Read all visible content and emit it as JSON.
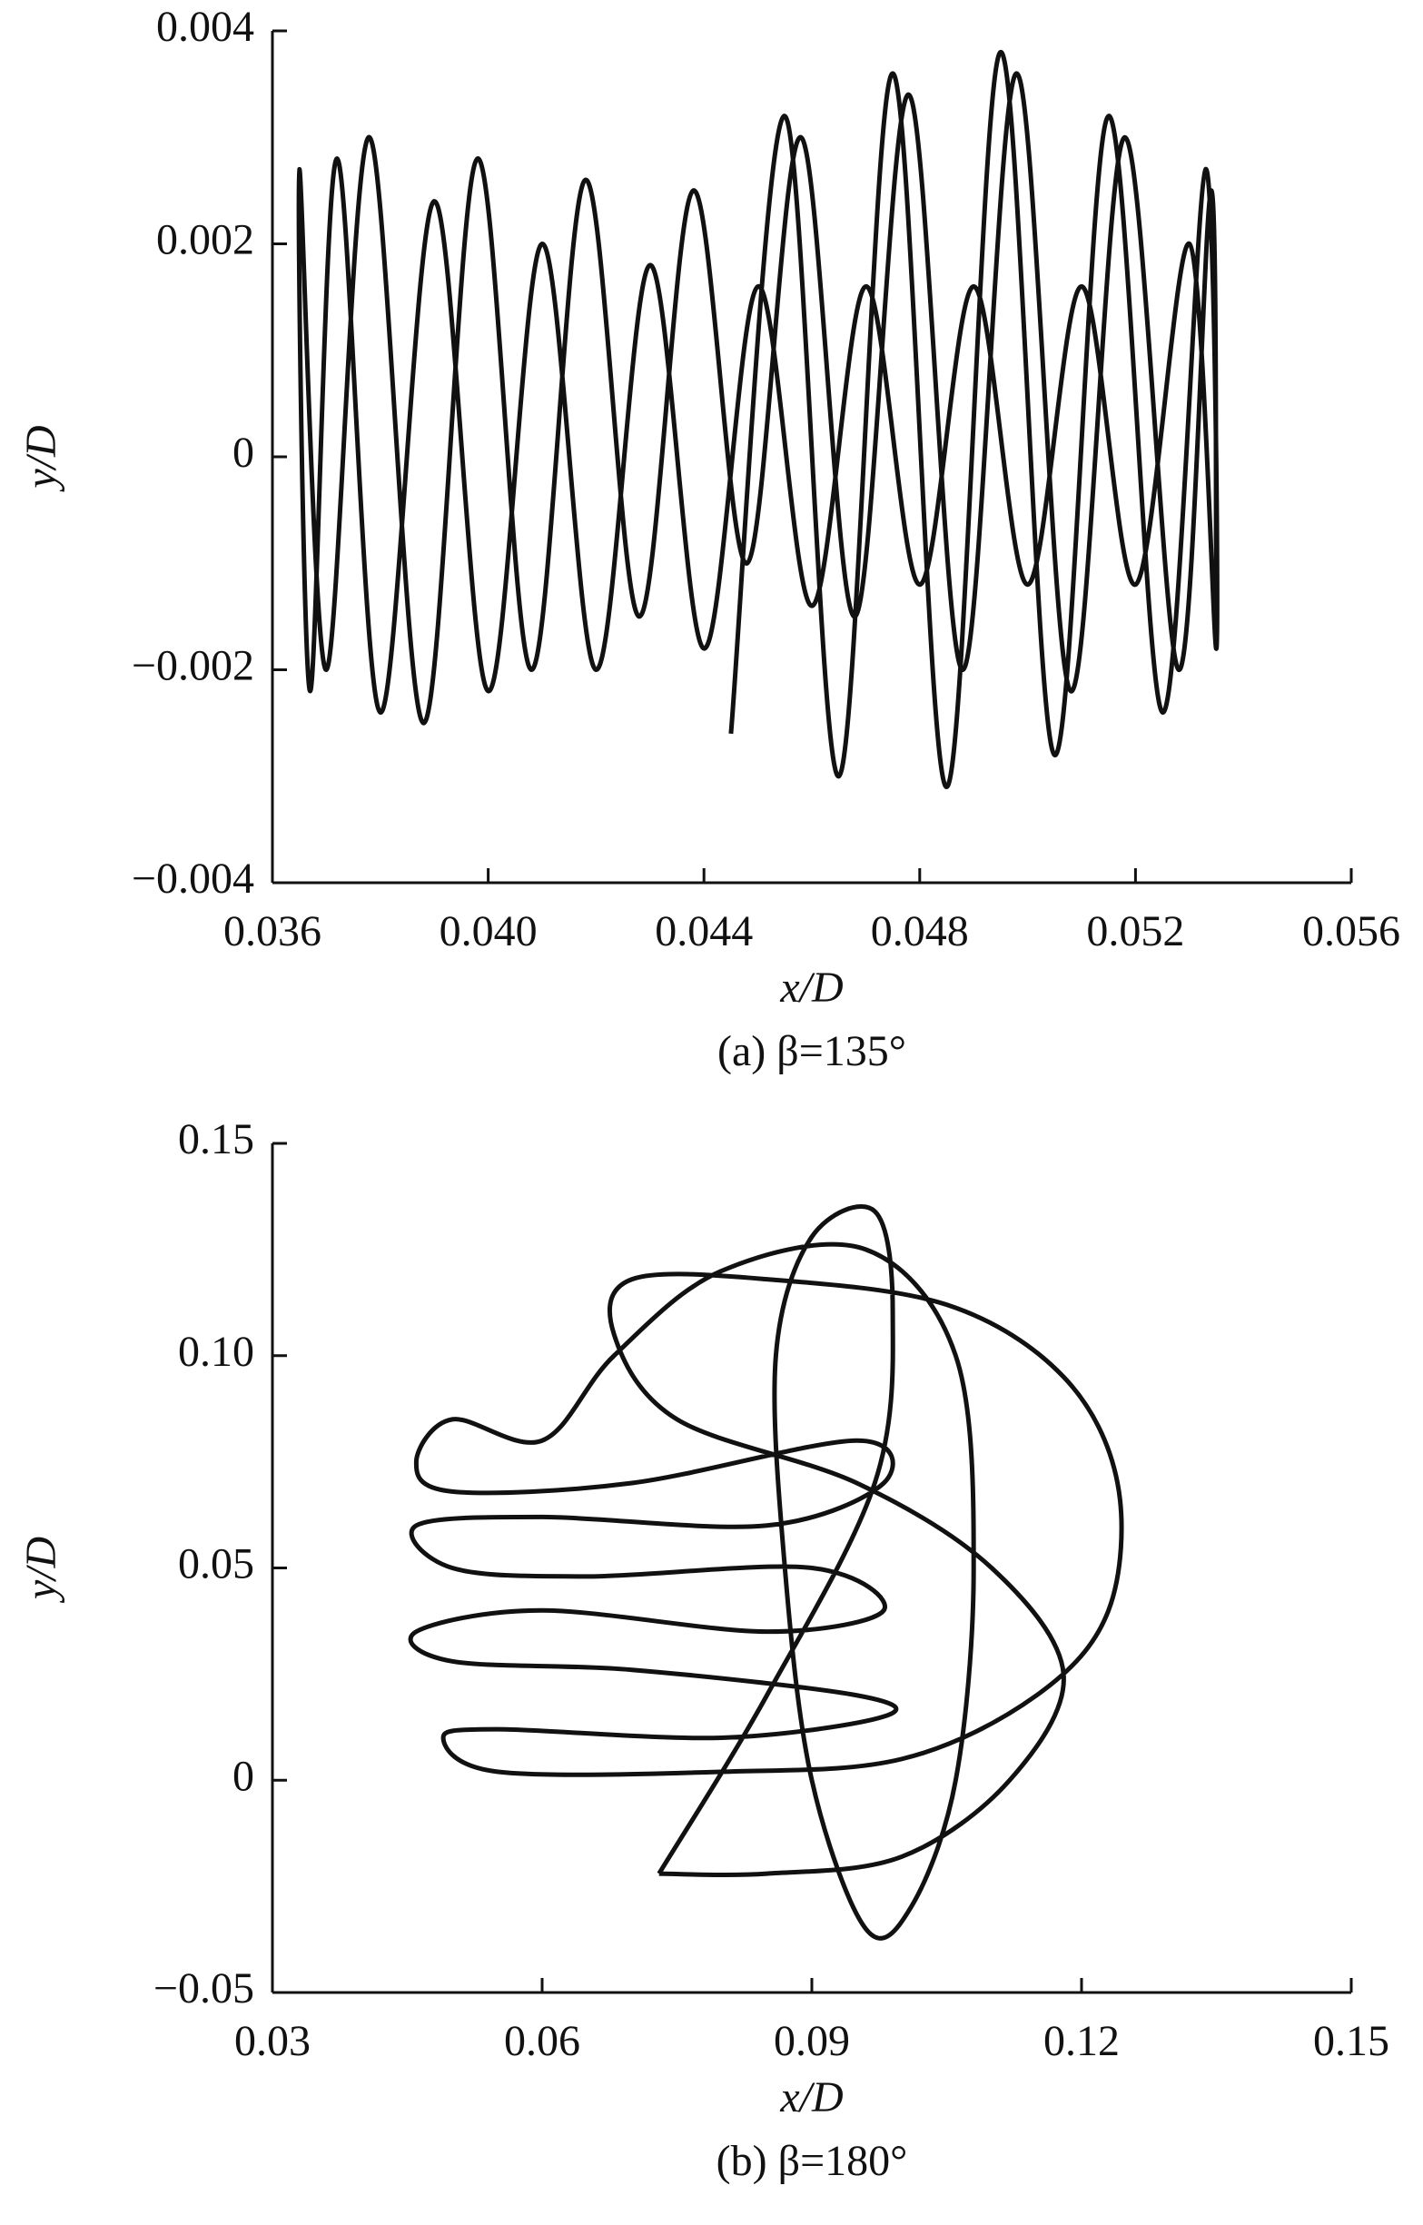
{
  "chart_data": [
    {
      "type": "line",
      "caption": "(a)  β=135°",
      "xlabel": "x/D",
      "ylabel": "y/D",
      "xlim": [
        0.036,
        0.056
      ],
      "ylim": [
        -0.004,
        0.004
      ],
      "xticks": [
        0.036,
        {
          "value": 0.04,
          "label": "0.040"
        },
        0.044,
        0.048,
        0.052,
        0.056
      ],
      "yticks": [
        {
          "value": -0.004,
          "label": "−0.004"
        },
        {
          "value": -0.002,
          "label": "−0.002"
        },
        0,
        0.002,
        0.004
      ],
      "series": [
        {
          "color": "#111111",
          "x": [
            0.0445,
            0.0455,
            0.0465,
            0.0475,
            0.0485,
            0.0495,
            0.0505,
            0.0515,
            0.0525,
            0.0533,
            0.0535,
            0.053,
            0.052,
            0.051,
            0.05,
            0.049,
            0.048,
            0.047,
            0.046,
            0.045,
            0.044,
            0.043,
            0.042,
            0.041,
            0.04,
            0.039,
            0.038,
            0.0372,
            0.0367,
            0.0365,
            0.037,
            0.0378,
            0.0388,
            0.0398,
            0.0408,
            0.0418,
            0.0428,
            0.0438,
            0.0448,
            0.0458,
            0.0468,
            0.0478,
            0.0488,
            0.0498,
            0.0508,
            0.0518,
            0.0528,
            0.0534,
            0.0535
          ],
          "values": [
            -0.0026,
            0.0032,
            -0.003,
            0.0036,
            -0.0031,
            0.0038,
            -0.0028,
            0.0032,
            -0.0024,
            0.0027,
            -0.0018,
            0.002,
            -0.0012,
            0.0016,
            -0.0012,
            0.0016,
            -0.0012,
            0.0016,
            -0.0014,
            0.0016,
            -0.0018,
            0.0018,
            -0.002,
            0.002,
            -0.0022,
            0.0024,
            -0.0024,
            0.0028,
            -0.0022,
            0.0027,
            -0.002,
            0.003,
            -0.0025,
            0.0028,
            -0.002,
            0.0026,
            -0.0015,
            0.0025,
            -0.001,
            0.003,
            -0.0015,
            0.0034,
            -0.002,
            0.0036,
            -0.0022,
            0.003,
            -0.002,
            0.0025,
            -0.0015
          ]
        }
      ]
    },
    {
      "type": "line",
      "caption": "(b)  β=180°",
      "xlabel": "x/D",
      "ylabel": "y/D",
      "xlim": [
        0.03,
        0.15
      ],
      "ylim": [
        -0.05,
        0.15
      ],
      "xticks": [
        0.03,
        0.06,
        0.09,
        0.12,
        0.15
      ],
      "yticks": [
        {
          "value": -0.05,
          "label": "−0.05"
        },
        0,
        0.05,
        {
          "value": 0.1,
          "label": "0.10"
        },
        0.15
      ],
      "series": [
        {
          "color": "#111111",
          "x": [
            0.073,
            0.085,
            0.097,
            0.099,
            0.097,
            0.09,
            0.086,
            0.087,
            0.09,
            0.096,
            0.101,
            0.106,
            0.108,
            0.106,
            0.096,
            0.08,
            0.068,
            0.06,
            0.05,
            0.046,
            0.05,
            0.07,
            0.095,
            0.098,
            0.085,
            0.06,
            0.046,
            0.05,
            0.065,
            0.09,
            0.098,
            0.085,
            0.06,
            0.046,
            0.05,
            0.07,
            0.095,
            0.098,
            0.08,
            0.055,
            0.049,
            0.055,
            0.08,
            0.1,
            0.115,
            0.123,
            0.124,
            0.118,
            0.105,
            0.085,
            0.07,
            0.068,
            0.075,
            0.095,
            0.11,
            0.118,
            0.112,
            0.1,
            0.085,
            0.073
          ],
          "values": [
            -0.022,
            0.02,
            0.07,
            0.11,
            0.134,
            0.128,
            0.1,
            0.05,
            0.0,
            -0.035,
            -0.03,
            0.0,
            0.05,
            0.1,
            0.125,
            0.12,
            0.1,
            0.08,
            0.085,
            0.075,
            0.068,
            0.07,
            0.08,
            0.07,
            0.06,
            0.062,
            0.06,
            0.05,
            0.048,
            0.05,
            0.04,
            0.035,
            0.04,
            0.035,
            0.028,
            0.026,
            0.02,
            0.015,
            0.01,
            0.012,
            0.01,
            0.002,
            0.002,
            0.005,
            0.02,
            0.04,
            0.07,
            0.095,
            0.112,
            0.118,
            0.118,
            0.105,
            0.085,
            0.07,
            0.05,
            0.025,
            0.0,
            -0.018,
            -0.022,
            -0.022
          ]
        }
      ]
    }
  ]
}
